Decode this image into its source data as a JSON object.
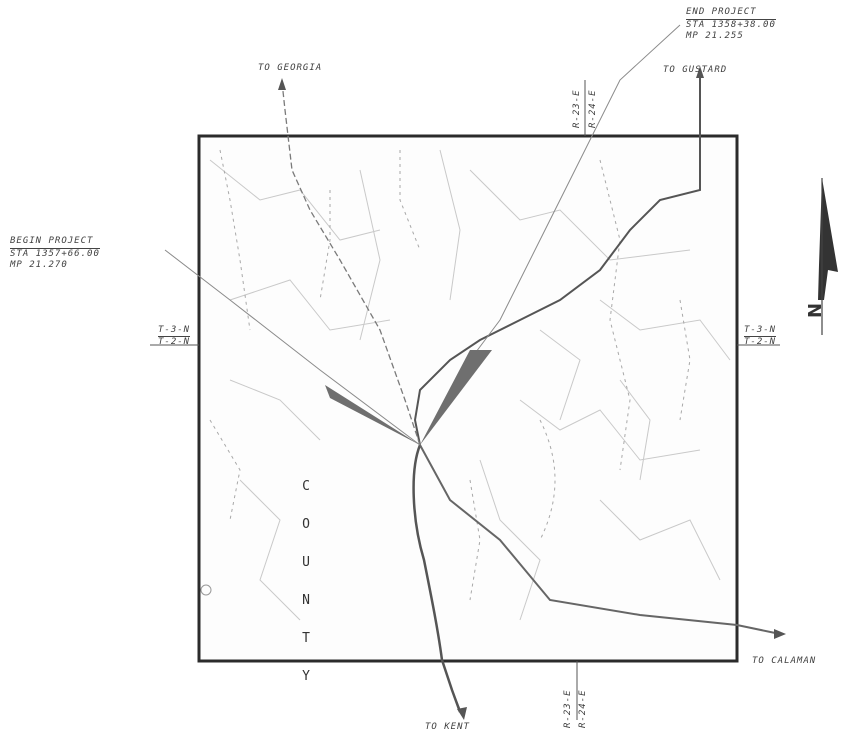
{
  "labels": {
    "to_georgia": "TO GEORGIA",
    "to_gustard": "TO GUSTARD",
    "to_calaman": "TO CALAMAN",
    "to_kent": "TO KENT",
    "county_letters": [
      "C",
      "O",
      "U",
      "N",
      "T",
      "Y"
    ]
  },
  "end_project": {
    "line1": "END PROJECT",
    "line2": "STA 1358+38.00",
    "line3": "MP 21.255"
  },
  "begin_project": {
    "line1": "BEGIN PROJECT",
    "line2": "STA 1357+66.00",
    "line3": "MP 21.270"
  },
  "township": {
    "left_top": "T-3-N",
    "left_bottom": "T-2-N",
    "right_top": "T-3-N",
    "right_bottom": "T-2-N"
  },
  "range": {
    "top_upper": "R-23-E",
    "top_lower": "R-24-E",
    "bottom_upper": "R-23-E",
    "bottom_lower": "R-24-E"
  },
  "north_arrow": {
    "letter": "N"
  },
  "colors": {
    "map_border": "#2b2b2b",
    "road": "#555555",
    "highlight": "#6f6f6f"
  }
}
